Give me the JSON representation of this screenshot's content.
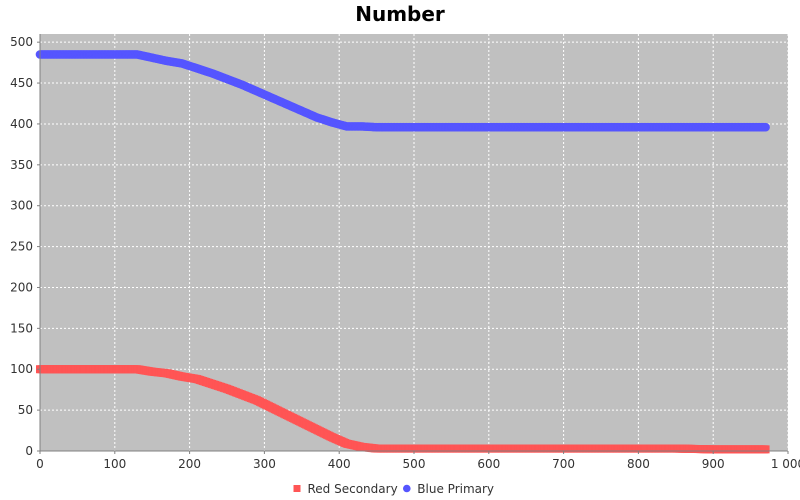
{
  "chart_data": {
    "type": "scatter",
    "title": "Number",
    "xlabel": "",
    "ylabel": "",
    "xlim": [
      0,
      1000
    ],
    "ylim": [
      0,
      510
    ],
    "x_ticks": [
      0,
      100,
      200,
      300,
      400,
      500,
      600,
      700,
      800,
      900,
      1000
    ],
    "x_tick_labels": [
      "0",
      "100",
      "200",
      "300",
      "400",
      "500",
      "600",
      "700",
      "800",
      "900",
      "1 000"
    ],
    "y_ticks": [
      0,
      50,
      100,
      150,
      200,
      250,
      300,
      350,
      400,
      450,
      500
    ],
    "y_tick_labels": [
      "0",
      "50",
      "100",
      "150",
      "200",
      "250",
      "300",
      "350",
      "400",
      "450",
      "500"
    ],
    "grid": true,
    "plot_background": "#c0c0c0",
    "legend_position": "bottom",
    "series": [
      {
        "name": "Red Secondary",
        "color": "#ff5555",
        "marker": "square",
        "x": [
          0,
          50,
          100,
          130,
          150,
          170,
          190,
          210,
          230,
          250,
          270,
          290,
          310,
          330,
          350,
          370,
          390,
          410,
          430,
          450,
          500,
          600,
          700,
          800,
          850,
          900,
          970
        ],
        "y": [
          100,
          100,
          100,
          100,
          97,
          95,
          91,
          88,
          82,
          76,
          69,
          62,
          53,
          44,
          35,
          26,
          17,
          9,
          5,
          3,
          3,
          3,
          3,
          3,
          3,
          2,
          2
        ]
      },
      {
        "name": "Blue Primary",
        "color": "#5555ff",
        "marker": "circle",
        "x": [
          0,
          50,
          100,
          130,
          150,
          170,
          190,
          210,
          230,
          250,
          270,
          290,
          310,
          330,
          350,
          370,
          390,
          410,
          430,
          450,
          500,
          600,
          700,
          800,
          900,
          970
        ],
        "y": [
          485,
          485,
          485,
          485,
          481,
          477,
          474,
          468,
          462,
          455,
          448,
          440,
          432,
          424,
          416,
          408,
          402,
          397,
          397,
          396,
          396,
          396,
          396,
          396,
          396,
          396
        ]
      }
    ]
  }
}
